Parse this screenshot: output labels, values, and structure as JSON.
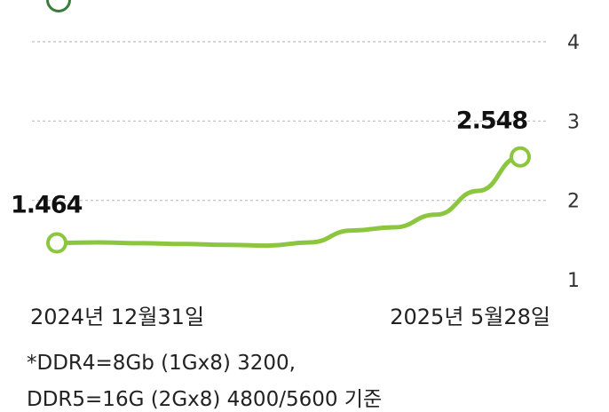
{
  "chart_data": {
    "type": "line",
    "x": [
      "2024-12-31",
      "",
      "",
      "",
      "",
      "",
      "",
      "",
      "",
      "",
      "",
      "2025-05-28"
    ],
    "series": [
      {
        "values": [
          1.464,
          1.47,
          1.46,
          1.45,
          1.44,
          1.43,
          1.47,
          1.62,
          1.66,
          1.82,
          2.12,
          2.548
        ],
        "color": "#8cc63f"
      }
    ],
    "ylim": [
      1,
      4
    ],
    "yticks": [
      1,
      2,
      3,
      4
    ],
    "grid": true,
    "axis_position": "right",
    "x_tick_labels": [
      "2024년 12월31일",
      "2025년 5월28일"
    ],
    "data_labels": [
      {
        "index": 0,
        "text": "1.464"
      },
      {
        "index": 11,
        "text": "2.548"
      }
    ]
  },
  "footnotes": [
    "*DDR4=8Gb (1Gx8) 3200,",
    " DDR5=16G (2Gx8) 4800/5600 기준"
  ],
  "legend_marker_color": "#3a7d3a",
  "grid_color": "#bfbfbf"
}
